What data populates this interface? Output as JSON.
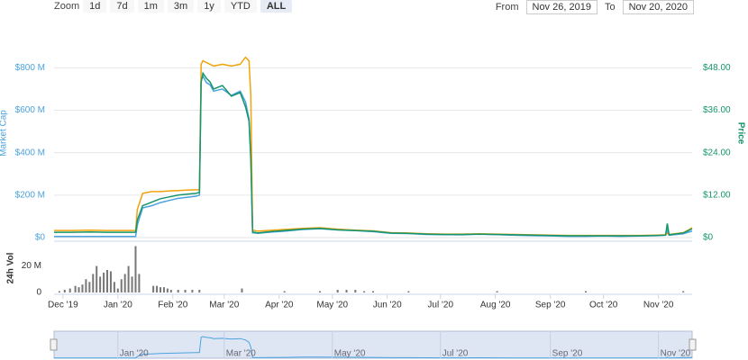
{
  "controls": {
    "zoom_label": "Zoom",
    "buttons": [
      "1d",
      "7d",
      "1m",
      "3m",
      "1y",
      "YTD",
      "ALL"
    ],
    "from_label": "From",
    "from_date": "Nov 26, 2019",
    "to_label": "To",
    "to_date": "Nov 20, 2020"
  },
  "chart_data": [
    {
      "type": "line",
      "ylabel": "Market Cap",
      "y2label": "Price",
      "x": [
        0,
        10,
        20,
        30,
        40,
        46,
        47,
        50,
        55,
        60,
        65,
        70,
        75,
        80,
        82,
        83,
        84,
        86,
        88,
        90,
        95,
        100,
        105,
        108,
        110,
        111,
        112,
        113,
        115,
        120,
        130,
        140,
        150,
        160,
        170,
        180,
        190,
        200,
        210,
        220,
        230,
        240,
        250,
        260,
        270,
        280,
        290,
        300,
        310,
        320,
        330,
        340,
        345,
        346,
        347,
        350,
        355,
        358,
        360
      ],
      "xlim": [
        0,
        360
      ],
      "xticks": [
        {
          "value": 5,
          "label": "Dec '19"
        },
        {
          "value": 36,
          "label": "Jan '20"
        },
        {
          "value": 67,
          "label": "Feb '20"
        },
        {
          "value": 96,
          "label": "Mar '20"
        },
        {
          "value": 127,
          "label": "Apr '20"
        },
        {
          "value": 157,
          "label": "May '20"
        },
        {
          "value": 188,
          "label": "Jun '20"
        },
        {
          "value": 218,
          "label": "Jul '20"
        },
        {
          "value": 249,
          "label": "Aug '20"
        },
        {
          "value": 280,
          "label": "Sep '20"
        },
        {
          "value": 310,
          "label": "Oct '20"
        },
        {
          "value": 341,
          "label": "Nov '20"
        }
      ],
      "ylim": [
        0,
        950
      ],
      "yticks": [
        {
          "value": 0,
          "label": "$0"
        },
        {
          "value": 200,
          "label": "$200 M"
        },
        {
          "value": 400,
          "label": "$400 M"
        },
        {
          "value": 600,
          "label": "$600 M"
        },
        {
          "value": 800,
          "label": "$800 M"
        }
      ],
      "y2lim": [
        0,
        57
      ],
      "y2ticks": [
        {
          "value": 0,
          "label": "$0"
        },
        {
          "value": 12,
          "label": "$12.00"
        },
        {
          "value": 24,
          "label": "$24.00"
        },
        {
          "value": 36,
          "label": "$36.00"
        },
        {
          "value": 48,
          "label": "$48.00"
        }
      ],
      "grid": true,
      "series": [
        {
          "name": "Market Cap",
          "color": "#4aa3df",
          "values": [
            5,
            5,
            5,
            5,
            5,
            5,
            60,
            140,
            150,
            165,
            175,
            185,
            190,
            195,
            200,
            740,
            760,
            730,
            720,
            690,
            700,
            670,
            690,
            640,
            560,
            390,
            22,
            22,
            20,
            24,
            30,
            38,
            42,
            36,
            33,
            28,
            20,
            19,
            15,
            14,
            13,
            16,
            14,
            11,
            9,
            8,
            6,
            6,
            7,
            6,
            7,
            9,
            11,
            35,
            11,
            14,
            18,
            26,
            30
          ]
        },
        {
          "color": "#f0a30a",
          "axis": "y2",
          "values": [
            2,
            2,
            2.1,
            2,
            2,
            2,
            8,
            12.5,
            13,
            13,
            13.2,
            13.3,
            13.4,
            13.5,
            13.5,
            49,
            50,
            49.5,
            49,
            48.5,
            49,
            48.5,
            49,
            51,
            50,
            40,
            2.2,
            2,
            1.8,
            2,
            2.3,
            2.6,
            2.8,
            2.4,
            2.1,
            1.9,
            1.4,
            1.3,
            1.1,
            1,
            1,
            1.1,
            1,
            0.9,
            0.8,
            0.7,
            0.6,
            0.6,
            0.6,
            0.6,
            0.6,
            0.7,
            0.8,
            1.2,
            0.9,
            1.1,
            1.4,
            2.2,
            2.8
          ]
        },
        {
          "name": "Price",
          "color": "#16956b",
          "axis": "y2",
          "values": [
            1.5,
            1.5,
            1.6,
            1.5,
            1.5,
            1.5,
            5,
            9,
            10,
            11,
            11.5,
            12,
            12.3,
            12.5,
            12.8,
            44,
            46.5,
            45,
            44,
            42,
            43,
            40,
            41,
            37,
            33,
            22,
            1.6,
            1.5,
            1.3,
            1.6,
            2,
            2.4,
            2.6,
            2.2,
            2,
            1.8,
            1.3,
            1.2,
            1,
            0.9,
            0.9,
            1,
            0.9,
            0.8,
            0.7,
            0.6,
            0.5,
            0.5,
            0.5,
            0.5,
            0.5,
            0.6,
            0.7,
            4,
            0.8,
            1,
            1.3,
            2,
            2.5
          ]
        }
      ]
    },
    {
      "type": "bar",
      "ylabel": "24h Vol",
      "color": "#777777",
      "x": [
        3,
        6,
        9,
        12,
        14,
        16,
        18,
        20,
        22,
        24,
        26,
        28,
        30,
        32,
        34,
        36,
        38,
        40,
        42,
        44,
        46,
        48,
        56,
        58,
        60,
        62,
        64,
        66,
        70,
        74,
        78,
        82,
        106,
        130,
        150,
        160,
        165,
        170,
        175,
        180,
        200,
        250,
        300,
        355
      ],
      "values": [
        1,
        2,
        3,
        5,
        4,
        6,
        10,
        8,
        14,
        20,
        12,
        15,
        17,
        16,
        8,
        3,
        10,
        14,
        20,
        12,
        35,
        14,
        5,
        5,
        4,
        4,
        3,
        2,
        2,
        2,
        2,
        2,
        3,
        1,
        1,
        2,
        2,
        2,
        1,
        1,
        1,
        1,
        1,
        1
      ],
      "xlim": [
        0,
        360
      ],
      "ylim": [
        0,
        36
      ],
      "yticks": [
        0,
        {
          "value": 20,
          "label": "20 M"
        }
      ]
    },
    {
      "type": "area",
      "xlim": [
        0,
        360
      ],
      "xticks": [
        {
          "value": 36,
          "label": "Jan '20"
        },
        {
          "value": 96,
          "label": "Mar '20"
        },
        {
          "value": 157,
          "label": "May '20"
        },
        {
          "value": 218,
          "label": "Jul '20"
        },
        {
          "value": 280,
          "label": "Sep '20"
        },
        {
          "value": 341,
          "label": "Nov '20"
        }
      ]
    }
  ]
}
